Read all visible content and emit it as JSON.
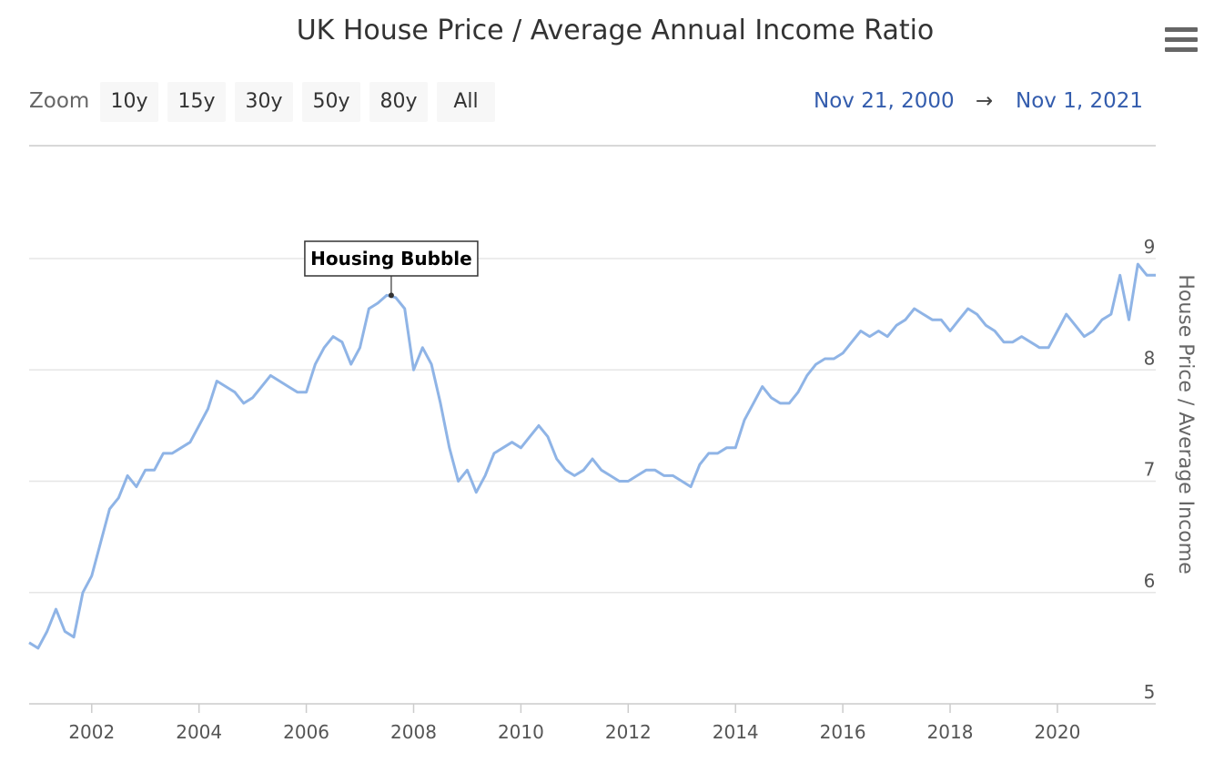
{
  "title": "UK House Price / Average Annual Income Ratio",
  "zoom": {
    "label": "Zoom",
    "buttons": [
      "10y",
      "15y",
      "30y",
      "50y",
      "80y",
      "All"
    ]
  },
  "range": {
    "from": "Nov 21, 2000",
    "arrow": "→",
    "to": "Nov 1, 2021"
  },
  "icons": {
    "menu": "hamburger-menu-icon"
  },
  "colors": {
    "line": "#8fb4e6",
    "accent": "#335cad",
    "grid": "#e6e6e6"
  },
  "chart_data": {
    "type": "line",
    "title": "UK House Price / Average Annual Income Ratio",
    "ylabel": "House Price / Average Income",
    "xlabel": "",
    "x_range": [
      "2000-11",
      "2021-11"
    ],
    "ylim": [
      5,
      9
    ],
    "yticks": [
      5,
      6,
      7,
      8,
      9
    ],
    "xticks": [
      "2002",
      "2004",
      "2006",
      "2008",
      "2010",
      "2012",
      "2014",
      "2016",
      "2018",
      "2020"
    ],
    "grid": true,
    "legend": "none",
    "annotation": {
      "text": "Housing Bubble",
      "x": "2007-08",
      "y": 8.67
    },
    "series": [
      {
        "x": [
          "2000-11",
          "2001-01",
          "2001-03",
          "2001-05",
          "2001-07",
          "2001-09",
          "2001-11",
          "2002-01",
          "2002-03",
          "2002-05",
          "2002-07",
          "2002-09",
          "2002-11",
          "2003-01",
          "2003-03",
          "2003-05",
          "2003-07",
          "2003-09",
          "2003-11",
          "2004-01",
          "2004-03",
          "2004-05",
          "2004-07",
          "2004-09",
          "2004-11",
          "2005-01",
          "2005-03",
          "2005-05",
          "2005-07",
          "2005-09",
          "2005-11",
          "2006-01",
          "2006-03",
          "2006-05",
          "2006-07",
          "2006-09",
          "2006-11",
          "2007-01",
          "2007-03",
          "2007-05",
          "2007-07",
          "2007-09",
          "2007-11",
          "2008-01",
          "2008-03",
          "2008-05",
          "2008-07",
          "2008-09",
          "2008-11",
          "2009-01",
          "2009-03",
          "2009-05",
          "2009-07",
          "2009-09",
          "2009-11",
          "2010-01",
          "2010-03",
          "2010-05",
          "2010-07",
          "2010-09",
          "2010-11",
          "2011-01",
          "2011-03",
          "2011-05",
          "2011-07",
          "2011-09",
          "2011-11",
          "2012-01",
          "2012-03",
          "2012-05",
          "2012-07",
          "2012-09",
          "2012-11",
          "2013-01",
          "2013-03",
          "2013-05",
          "2013-07",
          "2013-09",
          "2013-11",
          "2014-01",
          "2014-03",
          "2014-05",
          "2014-07",
          "2014-09",
          "2014-11",
          "2015-01",
          "2015-03",
          "2015-05",
          "2015-07",
          "2015-09",
          "2015-11",
          "2016-01",
          "2016-03",
          "2016-05",
          "2016-07",
          "2016-09",
          "2016-11",
          "2017-01",
          "2017-03",
          "2017-05",
          "2017-07",
          "2017-09",
          "2017-11",
          "2018-01",
          "2018-03",
          "2018-05",
          "2018-07",
          "2018-09",
          "2018-11",
          "2019-01",
          "2019-03",
          "2019-05",
          "2019-07",
          "2019-09",
          "2019-11",
          "2020-01",
          "2020-03",
          "2020-05",
          "2020-07",
          "2020-09",
          "2020-11",
          "2021-01",
          "2021-03",
          "2021-05",
          "2021-07",
          "2021-09",
          "2021-11"
        ],
        "y": [
          5.55,
          5.5,
          5.65,
          5.85,
          5.65,
          5.6,
          6.0,
          6.15,
          6.45,
          6.75,
          6.85,
          7.05,
          6.95,
          7.1,
          7.1,
          7.25,
          7.25,
          7.3,
          7.35,
          7.5,
          7.65,
          7.9,
          7.85,
          7.8,
          7.7,
          7.75,
          7.85,
          7.95,
          7.9,
          7.85,
          7.8,
          7.8,
          8.05,
          8.2,
          8.3,
          8.25,
          8.05,
          8.2,
          8.55,
          8.6,
          8.67,
          8.65,
          8.55,
          8.0,
          8.2,
          8.05,
          7.7,
          7.3,
          7.0,
          7.1,
          6.9,
          7.05,
          7.25,
          7.3,
          7.35,
          7.3,
          7.4,
          7.5,
          7.4,
          7.2,
          7.1,
          7.05,
          7.1,
          7.2,
          7.1,
          7.05,
          7.0,
          7.0,
          7.05,
          7.1,
          7.1,
          7.05,
          7.05,
          7.0,
          6.95,
          7.15,
          7.25,
          7.25,
          7.3,
          7.3,
          7.55,
          7.7,
          7.85,
          7.75,
          7.7,
          7.7,
          7.8,
          7.95,
          8.05,
          8.1,
          8.1,
          8.15,
          8.25,
          8.35,
          8.3,
          8.35,
          8.3,
          8.4,
          8.45,
          8.55,
          8.5,
          8.45,
          8.45,
          8.35,
          8.45,
          8.55,
          8.5,
          8.4,
          8.35,
          8.25,
          8.25,
          8.3,
          8.25,
          8.2,
          8.2,
          8.35,
          8.5,
          8.4,
          8.3,
          8.35,
          8.45,
          8.5,
          8.85,
          8.45,
          8.95,
          8.85,
          8.85
        ]
      }
    ]
  }
}
